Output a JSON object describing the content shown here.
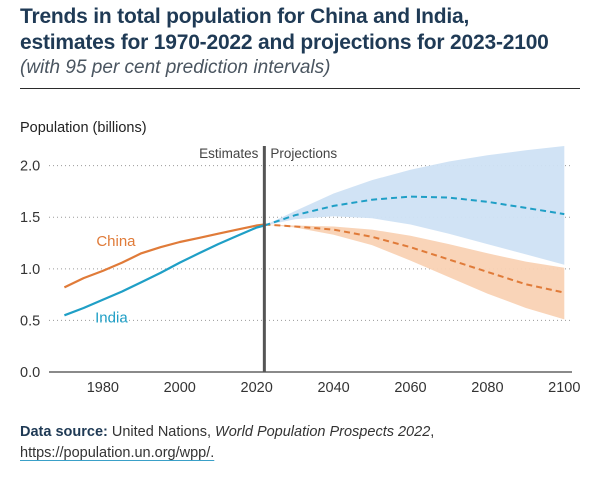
{
  "title": {
    "line1": "Trends in total population for China and India,",
    "line2": "estimates for 1970-2022 and projections for 2023-2100",
    "subtitle": "(with 95 per cent prediction intervals)"
  },
  "source": {
    "label": "Data source:",
    "org": "United Nations,",
    "publication": "World Population Prospects 2022",
    "separator": ",",
    "url": "https://population.un.org/wpp/."
  },
  "chart_data": {
    "type": "line",
    "ylabel": "Population (billions)",
    "xlim": [
      1966,
      2102
    ],
    "ylim": [
      0,
      2.2
    ],
    "xticks": [
      1980,
      2000,
      2020,
      2040,
      2060,
      2080,
      2100
    ],
    "yticks": [
      0.0,
      0.5,
      1.0,
      1.5,
      2.0
    ],
    "ytick_labels": [
      "0.0",
      "0.5",
      "1.0",
      "1.5",
      "2.0"
    ],
    "grid": "horizontal dotted",
    "divider": {
      "x": 2022,
      "left_label": "Estimates",
      "right_label": "Projections"
    },
    "colors": {
      "china": "#e07b39",
      "china_band": "#f9d2b4",
      "india": "#1f9fc6",
      "india_band": "#cfe2f4",
      "divider": "#555555"
    },
    "series": [
      {
        "name": "China",
        "estimates": {
          "x": [
            1970,
            1975,
            1980,
            1985,
            1990,
            1995,
            2000,
            2005,
            2010,
            2015,
            2020,
            2022
          ],
          "y": [
            0.82,
            0.91,
            0.98,
            1.06,
            1.15,
            1.21,
            1.26,
            1.3,
            1.34,
            1.38,
            1.42,
            1.43
          ]
        },
        "projection": {
          "x": [
            2022,
            2030,
            2040,
            2050,
            2060,
            2070,
            2080,
            2090,
            2100
          ],
          "y": [
            1.43,
            1.41,
            1.38,
            1.31,
            1.21,
            1.09,
            0.97,
            0.85,
            0.77
          ]
        },
        "interval_95": {
          "x": [
            2022,
            2030,
            2040,
            2050,
            2060,
            2070,
            2080,
            2090,
            2100
          ],
          "lower": [
            1.43,
            1.4,
            1.33,
            1.23,
            1.08,
            0.92,
            0.76,
            0.62,
            0.51
          ],
          "upper": [
            1.43,
            1.42,
            1.41,
            1.38,
            1.32,
            1.24,
            1.15,
            1.07,
            1.01
          ]
        }
      },
      {
        "name": "India",
        "estimates": {
          "x": [
            1970,
            1975,
            1980,
            1985,
            1990,
            1995,
            2000,
            2005,
            2010,
            2015,
            2020,
            2022
          ],
          "y": [
            0.55,
            0.62,
            0.7,
            0.78,
            0.87,
            0.96,
            1.06,
            1.15,
            1.24,
            1.32,
            1.4,
            1.42
          ]
        },
        "projection": {
          "x": [
            2022,
            2030,
            2040,
            2050,
            2060,
            2070,
            2080,
            2090,
            2100
          ],
          "y": [
            1.42,
            1.52,
            1.61,
            1.67,
            1.7,
            1.69,
            1.65,
            1.59,
            1.53
          ]
        },
        "interval_95": {
          "x": [
            2022,
            2030,
            2040,
            2050,
            2060,
            2070,
            2080,
            2090,
            2100
          ],
          "lower": [
            1.42,
            1.48,
            1.51,
            1.49,
            1.43,
            1.34,
            1.24,
            1.14,
            1.04
          ],
          "upper": [
            1.42,
            1.56,
            1.73,
            1.86,
            1.96,
            2.04,
            2.1,
            2.15,
            2.19
          ]
        }
      }
    ]
  }
}
